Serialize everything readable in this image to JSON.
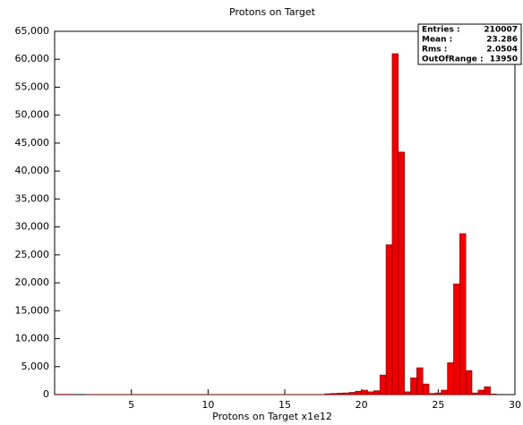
{
  "chart_data": {
    "type": "histogram",
    "title": "Protons on Target",
    "x_label": "Protons on Target x1e12",
    "bins": [
      0,
      0.4,
      0.8,
      1.2,
      1.6,
      2,
      2.4,
      2.8,
      3.2,
      3.6,
      4,
      4.4,
      4.8,
      5.2,
      5.6,
      6,
      6.4,
      6.8,
      7.2,
      7.6,
      8,
      8.4,
      8.8,
      9.2,
      9.6,
      10,
      10.4,
      10.8,
      11.2,
      11.6,
      12,
      12.4,
      12.8,
      13.2,
      13.6,
      14,
      14.4,
      14.8,
      15.2,
      15.6,
      16,
      16.4,
      16.8,
      17.2,
      17.6,
      18,
      18.4,
      18.8,
      19.2,
      19.6,
      20,
      20.4,
      20.8,
      21.2,
      21.6,
      22,
      22.4,
      22.8,
      23.2,
      23.6,
      24,
      24.4,
      24.8,
      25.2,
      25.6,
      26,
      26.4,
      26.8,
      27.2,
      27.6,
      28,
      28.4,
      28.8,
      29.2,
      29.6,
      30
    ],
    "values": [
      50,
      50,
      50,
      0,
      0,
      30,
      30,
      30,
      30,
      30,
      30,
      30,
      30,
      30,
      30,
      30,
      30,
      30,
      30,
      30,
      30,
      30,
      30,
      30,
      30,
      30,
      30,
      30,
      30,
      30,
      30,
      30,
      30,
      30,
      30,
      30,
      30,
      30,
      30,
      30,
      30,
      30,
      30,
      30,
      150,
      200,
      250,
      300,
      400,
      600,
      800,
      500,
      700,
      3500,
      26800,
      61000,
      43400,
      500,
      3000,
      4800,
      1900,
      200,
      300,
      800,
      5700,
      19800,
      28800,
      4300,
      300,
      800,
      1400,
      100,
      0,
      0,
      0
    ],
    "color": "#ee0000",
    "xlim": [
      0,
      30
    ],
    "xticks": [
      5,
      10,
      15,
      20,
      25,
      30
    ],
    "ylim": [
      0,
      65000
    ],
    "yticks": [
      0,
      {
        "value": 5000,
        "label": "5,000"
      },
      {
        "value": 10000,
        "label": "10,000"
      },
      {
        "value": 15000,
        "label": "15,000"
      },
      {
        "value": 20000,
        "label": "20,000"
      },
      {
        "value": 25000,
        "label": "25,000"
      },
      {
        "value": 30000,
        "label": "30,000"
      },
      {
        "value": 35000,
        "label": "35,000"
      },
      {
        "value": 40000,
        "label": "40,000"
      },
      {
        "value": 45000,
        "label": "45,000"
      },
      {
        "value": 50000,
        "label": "50,000"
      },
      {
        "value": 55000,
        "label": "55,000"
      },
      {
        "value": 60000,
        "label": "60,000"
      },
      {
        "value": 65000,
        "label": "65,000"
      }
    ],
    "stats": [
      {
        "label": "Entries :",
        "value": 210007
      },
      {
        "label": "Mean :",
        "value": 23.286
      },
      {
        "label": "Rms :",
        "value": 2.0504
      },
      {
        "label": "OutOfRange :",
        "value": 13950
      }
    ]
  }
}
